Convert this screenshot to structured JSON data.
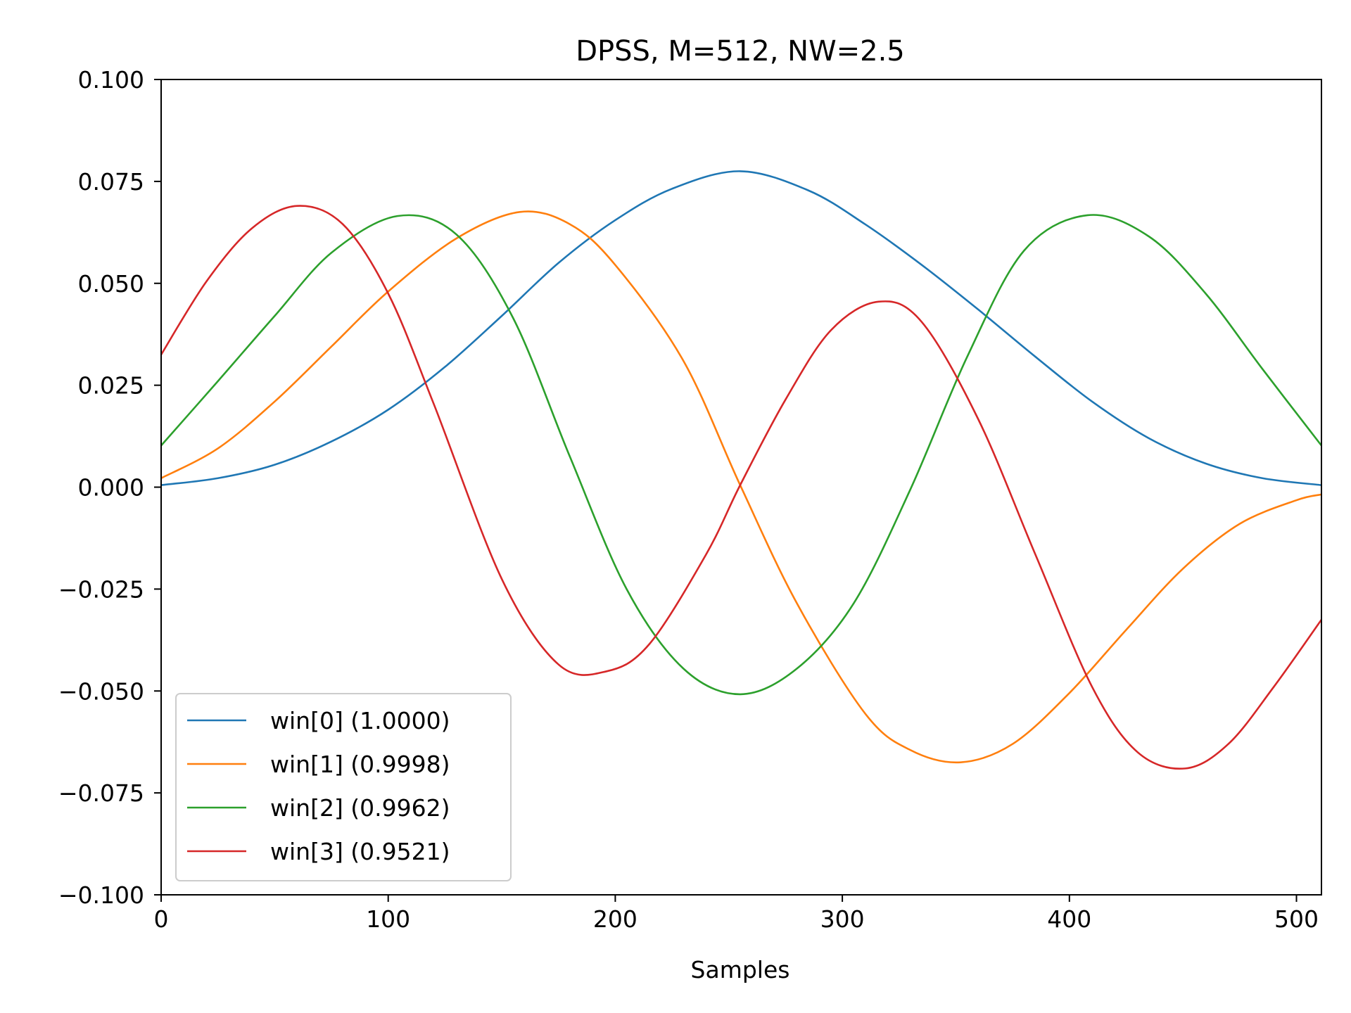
{
  "chart_data": {
    "type": "line",
    "title": "DPSS, M=512, NW=2.5",
    "xlabel": "Samples",
    "ylabel": "",
    "xlim": [
      0,
      511
    ],
    "ylim": [
      -0.1,
      0.1
    ],
    "x_ticks": [
      0,
      100,
      200,
      300,
      400,
      500
    ],
    "x_tick_labels": [
      "0",
      "100",
      "200",
      "300",
      "400",
      "500"
    ],
    "y_ticks": [
      -0.1,
      -0.075,
      -0.05,
      -0.025,
      0.0,
      0.025,
      0.05,
      0.075,
      0.1
    ],
    "y_tick_labels": [
      "−0.100",
      "−0.075",
      "−0.050",
      "−0.025",
      "0.000",
      "0.025",
      "0.050",
      "0.075",
      "0.100"
    ],
    "grid": false,
    "legend_position": "lower-left",
    "series": [
      {
        "name": "win[0] (1.0000)",
        "color": "#1f77b4",
        "x": [
          0,
          25,
          50,
          75,
          100,
          125,
          150,
          175,
          200,
          225,
          255,
          285,
          310,
          335,
          360,
          385,
          410,
          435,
          460,
          485,
          511
        ],
        "y": [
          0.0005,
          0.0022,
          0.0055,
          0.0112,
          0.019,
          0.0295,
          0.042,
          0.055,
          0.0655,
          0.0732,
          0.0775,
          0.0728,
          0.0645,
          0.0545,
          0.0435,
          0.032,
          0.021,
          0.012,
          0.0058,
          0.0022,
          0.0005
        ]
      },
      {
        "name": "win[1] (0.9998)",
        "color": "#ff7f0e",
        "x": [
          0,
          25,
          50,
          75,
          100,
          130,
          158,
          180,
          200,
          230,
          255,
          280,
          310,
          330,
          352,
          375,
          400,
          425,
          450,
          475,
          500,
          511
        ],
        "y": [
          0.0022,
          0.0095,
          0.021,
          0.0345,
          0.048,
          0.061,
          0.0675,
          0.0645,
          0.0545,
          0.031,
          0.0005,
          -0.0285,
          -0.0555,
          -0.0645,
          -0.0675,
          -0.063,
          -0.0505,
          -0.035,
          -0.02,
          -0.009,
          -0.0032,
          -0.0018
        ]
      },
      {
        "name": "win[2] (0.9962)",
        "color": "#2ca02c",
        "x": [
          0,
          25,
          50,
          75,
          104,
          130,
          155,
          180,
          205,
          230,
          255,
          280,
          305,
          330,
          355,
          380,
          408,
          435,
          460,
          485,
          511
        ],
        "y": [
          0.0102,
          0.026,
          0.042,
          0.0575,
          0.0665,
          0.062,
          0.0415,
          0.0075,
          -0.025,
          -0.0445,
          -0.0508,
          -0.0445,
          -0.0285,
          -0.0005,
          0.032,
          0.058,
          0.0667,
          0.0615,
          0.0475,
          0.029,
          0.0102
        ]
      },
      {
        "name": "win[3] (0.9521)",
        "color": "#d62728",
        "x": [
          0,
          20,
          40,
          60,
          80,
          100,
          120,
          150,
          175,
          196,
          215,
          240,
          255,
          275,
          295,
          316,
          335,
          360,
          385,
          410,
          430,
          451,
          470,
          490,
          511
        ],
        "y": [
          0.0325,
          0.0505,
          0.0635,
          0.069,
          0.0645,
          0.0475,
          0.0205,
          -0.0225,
          -0.0435,
          -0.0452,
          -0.0385,
          -0.0165,
          0.0005,
          0.0215,
          0.0385,
          0.0455,
          0.0405,
          0.0165,
          -0.0165,
          -0.049,
          -0.065,
          -0.069,
          -0.063,
          -0.049,
          -0.0325
        ]
      }
    ]
  }
}
